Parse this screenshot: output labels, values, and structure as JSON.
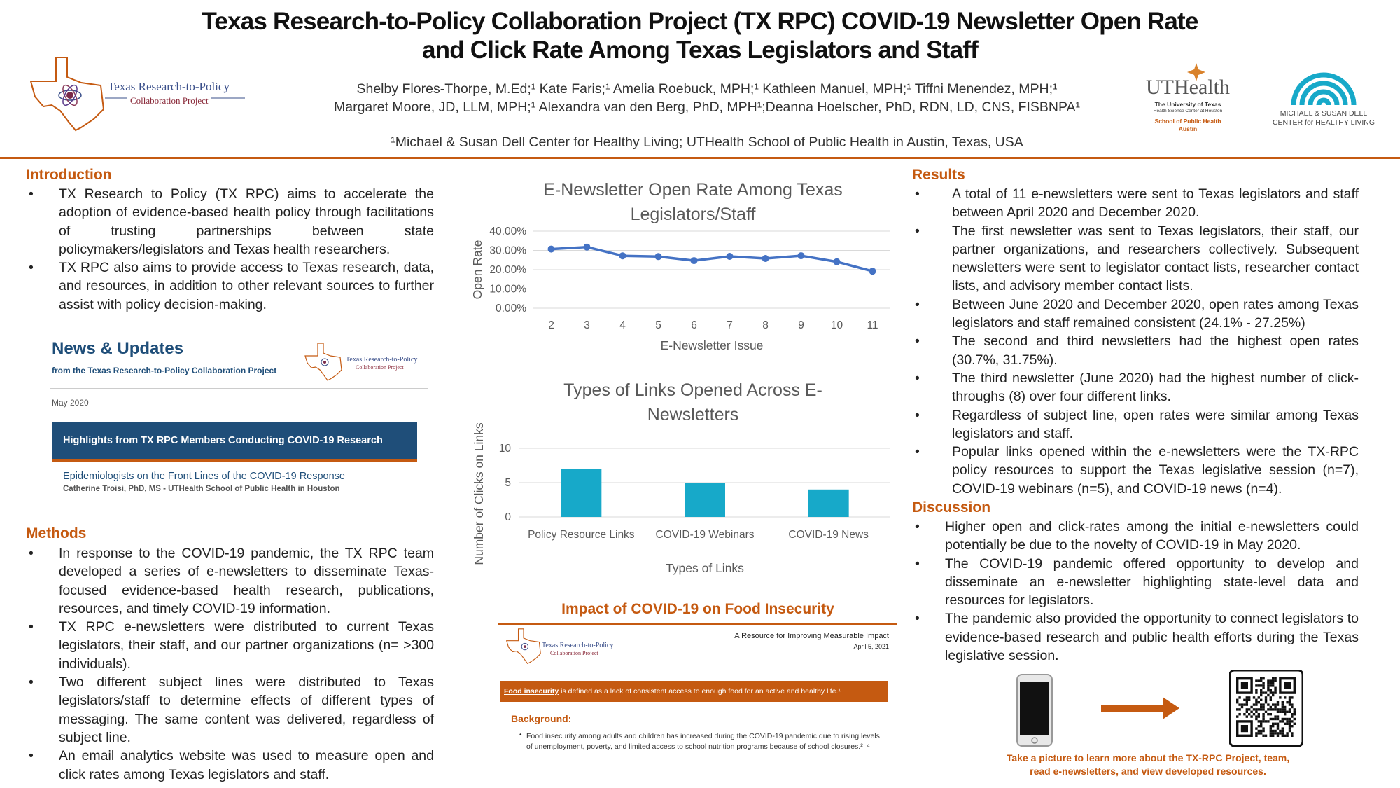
{
  "title_line1": "Texas Research-to-Policy Collaboration Project (TX RPC) COVID-19 Newsletter Open Rate",
  "title_line2": "and Click Rate Among Texas Legislators and Staff",
  "authors_line1": "Shelby Flores-Thorpe, M.Ed;¹ Kate Faris;¹ Amelia Roebuck, MPH;¹ Kathleen Manuel, MPH;¹ Tiffni Menendez, MPH;¹",
  "authors_line2": "Margaret Moore, JD, LLM, MPH;¹ Alexandra van den Berg, PhD, MPH¹;Deanna Hoelscher, PhD, RDN, LD, CNS, FISBNPA¹",
  "affiliation": "¹Michael & Susan Dell Center for Healthy Living; UTHealth School of Public Health in Austin, Texas, USA",
  "logos": {
    "txrpc_line1": "Texas Research-to-Policy",
    "txrpc_line2": "Collaboration Project",
    "uthealth_name": "UTHealth",
    "uthealth_sub1": "The University of Texas",
    "uthealth_sub2": "Health Science Center at Houston",
    "uthealth_school": "School of Public Health",
    "uthealth_city": "Austin",
    "dell_line1": "MICHAEL & SUSAN DELL",
    "dell_line2": "CENTER for HEALTHY LIVING"
  },
  "introduction": {
    "heading": "Introduction",
    "bullets": [
      "TX Research to Policy (TX RPC) aims to accelerate the adoption of evidence-based health policy through facilitations of trusting partnerships between state policymakers/legislators and Texas health researchers.",
      "TX RPC also aims to provide access to Texas research, data, and resources, in addition to other relevant sources to further assist with policy decision-making."
    ]
  },
  "newsletter_image": {
    "heading": "News & Updates",
    "subheading": "from the Texas Research-to-Policy Collaboration Project",
    "logo_line1": "Texas Research-to-Policy",
    "logo_line2": "Collaboration Project",
    "date": "May 2020",
    "banner": "Highlights from TX RPC Members Conducting COVID-19 Research",
    "article_title": "Epidemiologists on the Front Lines of the COVID-19 Response",
    "article_author": "Catherine Troisi, PhD, MS - UTHealth School of Public Health in Houston"
  },
  "methods": {
    "heading": "Methods",
    "bullets": [
      "In response to the COVID-19 pandemic, the TX RPC team developed a series of e-newsletters to disseminate Texas-focused evidence-based health research, publications, resources, and timely COVID-19 information.",
      "TX RPC e-newsletters were distributed to current Texas legislators, their staff, and our partner organizations (n= >300 individuals).",
      "Two different subject lines were distributed to Texas legislators/staff to determine effects of different types of messaging. The same content was delivered, regardless of subject line.",
      "An email analytics website was used to measure open and click rates among Texas legislators and staff."
    ]
  },
  "chart_data": [
    {
      "type": "line",
      "title": "E-Newsletter Open Rate Among Texas Legislators/Staff",
      "xlabel": "E-Newsletter Issue",
      "ylabel": "Open Rate",
      "x": [
        "2",
        "3",
        "4",
        "5",
        "6",
        "7",
        "8",
        "9",
        "10",
        "11"
      ],
      "values": [
        30.7,
        31.75,
        27.2,
        26.8,
        24.7,
        26.9,
        25.8,
        27.25,
        24.1,
        19.2
      ],
      "yticks": [
        "0.00%",
        "10.00%",
        "20.00%",
        "30.00%",
        "40.00%"
      ],
      "ylim": [
        0,
        40
      ],
      "grid": true,
      "color": "#4472c4"
    },
    {
      "type": "bar",
      "title": "Types of Links Opened Across E-Newsletters",
      "xlabel": "Types of Links",
      "ylabel": "Number of Clicks on Links",
      "categories": [
        "Policy Resource Links",
        "COVID-19 Webinars",
        "COVID-19 News"
      ],
      "values": [
        7,
        5,
        4
      ],
      "yticks": [
        "0",
        "5",
        "10"
      ],
      "ylim": [
        0,
        10
      ],
      "grid": true,
      "color": "#17a9c9"
    }
  ],
  "food_image": {
    "title": "Impact of COVID-19 on Food Insecurity",
    "logo_line1": "Texas Research-to-Policy",
    "logo_line2": "Collaboration Project",
    "resource_line": "A Resource for Improving Measurable Impact",
    "date": "April 5, 2021",
    "definition_term": "Food insecurity",
    "definition_rest": " is defined as a lack of consistent access to enough food for an active and healthy life.¹",
    "background_heading": "Background:",
    "background_text": "Food insecurity among adults and children has increased during the COVID-19 pandemic due to rising levels of unemployment, poverty, and limited access to school nutrition programs because of school closures.²⁻⁴"
  },
  "results": {
    "heading": "Results",
    "bullets": [
      "A total of 11 e-newsletters were sent to Texas legislators and staff between April 2020 and December 2020.",
      "The first newsletter was sent to Texas legislators, their staff, our partner organizations, and researchers collectively. Subsequent newsletters were sent to legislator contact lists, researcher contact lists, and advisory member contact lists.",
      "Between June 2020 and December 2020, open rates among Texas legislators and staff remained consistent (24.1% - 27.25%)",
      "The second and third newsletters had the highest open rates (30.7%, 31.75%).",
      "The third newsletter (June 2020) had the highest number of click-throughs (8) over four different links.",
      "Regardless of subject line, open rates were similar among Texas legislators and staff.",
      "Popular links opened within the e-newsletters were the TX-RPC policy resources to support the Texas legislative session (n=7), COVID-19 webinars (n=5), and COVID-19 news (n=4)."
    ]
  },
  "discussion": {
    "heading": "Discussion",
    "bullets": [
      "Higher open and click-rates among the initial e-newsletters could potentially be due to the novelty of COVID-19 in May 2020.",
      "The COVID-19 pandemic offered opportunity to develop and disseminate an e-newsletter highlighting state-level data and resources for legislators.",
      "The pandemic also provided the opportunity to connect legislators to evidence-based research and public health efforts during the Texas legislative session."
    ]
  },
  "qr": {
    "caption_line1": "Take a picture to learn more about the TX-RPC Project, team,",
    "caption_line2": "read e-newsletters, and view developed resources."
  }
}
